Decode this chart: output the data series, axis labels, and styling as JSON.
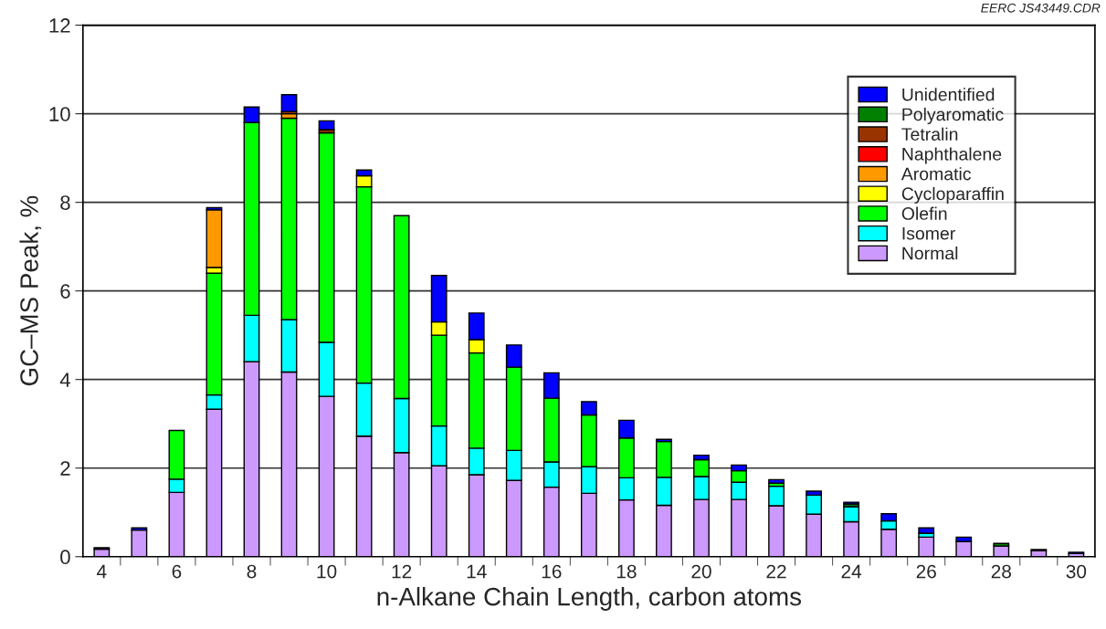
{
  "chart_data": {
    "type": "bar",
    "stacked": true,
    "xlabel": "n-Alkane Chain Length, carbon atoms",
    "ylabel": "GC–MS Peak, %",
    "annotations": [
      "EERC JS43449.CDR"
    ],
    "categories": [
      "4",
      null,
      "6",
      null,
      "8",
      null,
      "10",
      null,
      "12",
      null,
      "14",
      null,
      "16",
      null,
      "18",
      null,
      "20",
      null,
      "22",
      null,
      "24",
      null,
      "26",
      null,
      "28",
      null,
      "30"
    ],
    "ylim": [
      0,
      12
    ],
    "yticks": [
      0,
      2,
      4,
      6,
      8,
      10,
      12
    ],
    "grid": "y",
    "legend": "top right",
    "series": [
      {
        "name": "Normal",
        "color": "#cc99ff",
        "values": [
          0.17,
          0.6,
          1.45,
          3.33,
          4.4,
          4.17,
          3.62,
          2.72,
          2.35,
          2.05,
          1.85,
          1.72,
          1.57,
          1.43,
          1.28,
          1.16,
          1.29,
          1.29,
          1.15,
          0.96,
          0.79,
          0.62,
          0.44,
          0.34,
          0.24,
          0.14,
          0.07
        ]
      },
      {
        "name": "Isomer",
        "color": "#00ffff",
        "values": [
          0,
          0,
          0.3,
          0.32,
          1.05,
          1.18,
          1.22,
          1.2,
          1.22,
          0.9,
          0.6,
          0.68,
          0.57,
          0.6,
          0.5,
          0.63,
          0.52,
          0.39,
          0.44,
          0.43,
          0.34,
          0.19,
          0.09,
          0,
          0,
          0,
          0
        ]
      },
      {
        "name": "Olefin",
        "color": "#00ff00",
        "values": [
          0,
          0,
          1.1,
          2.75,
          4.35,
          4.55,
          4.73,
          4.43,
          4.13,
          2.05,
          2.15,
          1.88,
          1.44,
          1.17,
          0.9,
          0.81,
          0.38,
          0.26,
          0.07,
          0,
          0,
          0,
          0,
          0,
          0,
          0,
          0
        ]
      },
      {
        "name": "Cycloparaffin",
        "color": "#ffff00",
        "values": [
          0,
          0,
          0,
          0.13,
          0,
          0,
          0,
          0.25,
          0,
          0.3,
          0.3,
          0,
          0,
          0,
          0,
          0,
          0,
          0,
          0,
          0,
          0,
          0,
          0,
          0,
          0,
          0,
          0
        ]
      },
      {
        "name": "Aromatic",
        "color": "#ff9900",
        "values": [
          0,
          0,
          0,
          1.3,
          0,
          0.1,
          0,
          0,
          0,
          0,
          0,
          0,
          0,
          0,
          0,
          0,
          0,
          0,
          0,
          0,
          0,
          0,
          0,
          0,
          0,
          0,
          0
        ]
      },
      {
        "name": "Naphthalene",
        "color": "#ff0000",
        "values": [
          0,
          0,
          0,
          0,
          0,
          0,
          0,
          0,
          0,
          0,
          0,
          0,
          0,
          0,
          0,
          0,
          0,
          0,
          0,
          0,
          0,
          0,
          0,
          0,
          0,
          0,
          0
        ]
      },
      {
        "name": "Tetralin",
        "color": "#993300",
        "values": [
          0,
          0,
          0,
          0,
          0,
          0.05,
          0.07,
          0,
          0,
          0,
          0,
          0,
          0,
          0,
          0,
          0,
          0,
          0,
          0,
          0,
          0,
          0,
          0,
          0,
          0,
          0,
          0
        ]
      },
      {
        "name": "Polyaromatic",
        "color": "#007f00",
        "values": [
          0,
          0,
          0,
          0,
          0,
          0,
          0,
          0,
          0,
          0,
          0,
          0,
          0,
          0,
          0,
          0,
          0,
          0,
          0,
          0,
          0.06,
          0,
          0,
          0,
          0.06,
          0,
          0
        ]
      },
      {
        "name": "Unidentified",
        "color": "#0000ff",
        "values": [
          0.03,
          0.05,
          0,
          0.05,
          0.35,
          0.38,
          0.2,
          0.13,
          0,
          1.05,
          0.6,
          0.5,
          0.57,
          0.3,
          0.4,
          0.05,
          0.1,
          0.13,
          0.08,
          0.09,
          0.04,
          0.16,
          0.12,
          0.1,
          0,
          0.02,
          0.03
        ]
      }
    ]
  }
}
